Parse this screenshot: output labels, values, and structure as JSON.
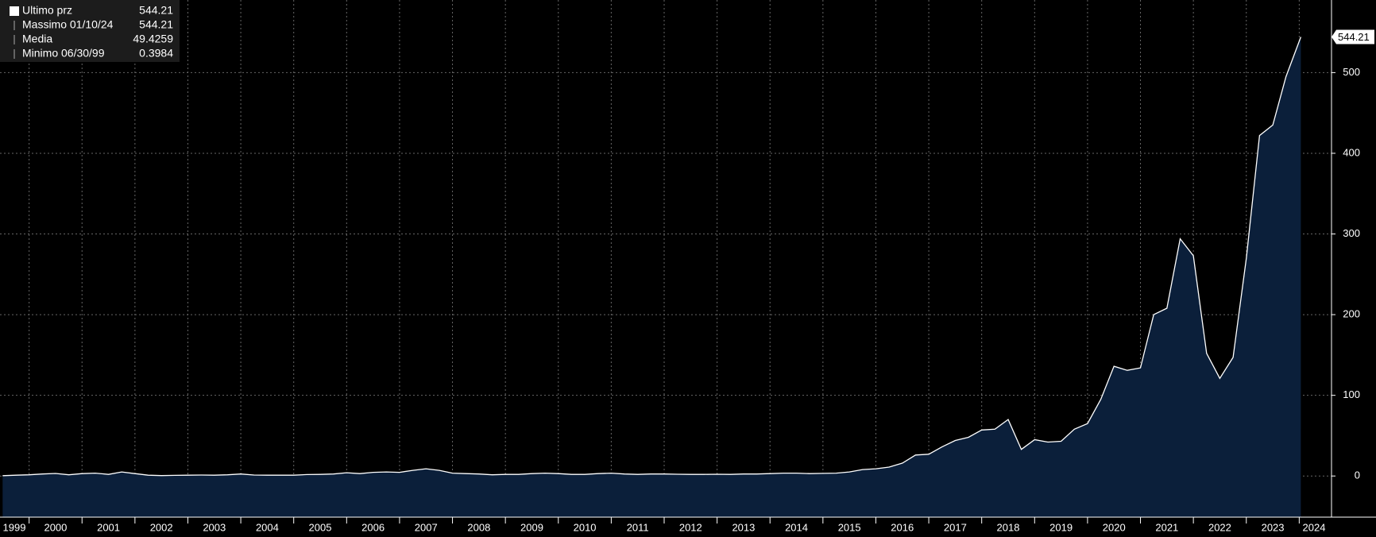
{
  "chart_data": {
    "type": "area",
    "legend": [
      {
        "label": "Ultimo prz",
        "value": 544.21
      },
      {
        "label": "Massimo 01/10/24",
        "value": 544.21
      },
      {
        "label": "Media",
        "value": 49.4259
      },
      {
        "label": "Minimo 06/30/99",
        "value": 0.3984
      }
    ],
    "x": [
      1999.5,
      1999.75,
      2000,
      2000.25,
      2000.5,
      2000.75,
      2001,
      2001.25,
      2001.5,
      2001.75,
      2002,
      2002.25,
      2002.5,
      2002.75,
      2003,
      2003.25,
      2003.5,
      2003.75,
      2004,
      2004.25,
      2004.5,
      2004.75,
      2005,
      2005.25,
      2005.5,
      2005.75,
      2006,
      2006.25,
      2006.5,
      2006.75,
      2007,
      2007.25,
      2007.5,
      2007.75,
      2008,
      2008.25,
      2008.5,
      2008.75,
      2009,
      2009.25,
      2009.5,
      2009.75,
      2010,
      2010.25,
      2010.5,
      2010.75,
      2011,
      2011.25,
      2011.5,
      2011.75,
      2012,
      2012.25,
      2012.5,
      2012.75,
      2013,
      2013.25,
      2013.5,
      2013.75,
      2014,
      2014.25,
      2014.5,
      2014.75,
      2015,
      2015.25,
      2015.5,
      2015.75,
      2016,
      2016.25,
      2016.5,
      2016.75,
      2017,
      2017.25,
      2017.5,
      2017.75,
      2018,
      2018.25,
      2018.5,
      2018.75,
      2019,
      2019.25,
      2019.5,
      2019.75,
      2020,
      2020.25,
      2020.5,
      2020.75,
      2021,
      2021.25,
      2021.5,
      2021.75,
      2022,
      2022.25,
      2022.5,
      2022.75,
      2023,
      2023.25,
      2023.5,
      2023.75,
      2024.03
    ],
    "series": [
      {
        "name": "Ultimo prz",
        "color": "#ffffff",
        "fill": "#0b1f3a",
        "values": [
          0.3984,
          1.0,
          1.5,
          2.5,
          3.2,
          1.5,
          3,
          3.5,
          2,
          5,
          3,
          1,
          0.5,
          0.8,
          1,
          1.2,
          1,
          1.5,
          2.5,
          1.2,
          1,
          1,
          1,
          1.8,
          2,
          2.5,
          4,
          3,
          4.5,
          5,
          4.5,
          7,
          9,
          7,
          3.5,
          3,
          2.5,
          1.5,
          2,
          2,
          3,
          3.5,
          3,
          2,
          2,
          3,
          3.5,
          2.5,
          2,
          2.5,
          2.5,
          2.2,
          2,
          2,
          2.2,
          2,
          2.5,
          2.5,
          3,
          3.5,
          3.5,
          3,
          3.3,
          3.5,
          5,
          8,
          9,
          11,
          16,
          26,
          27,
          36,
          44,
          48,
          57,
          58,
          70,
          33,
          45,
          42,
          43,
          58,
          65,
          95,
          136,
          131,
          134,
          200,
          208,
          294,
          273,
          152,
          121,
          147,
          270,
          422,
          435,
          495,
          544.21
        ]
      }
    ],
    "xlim": [
      1999.45,
      2024.61
    ],
    "xticks": [
      1999,
      2000,
      2001,
      2002,
      2003,
      2004,
      2005,
      2006,
      2007,
      2008,
      2009,
      2010,
      2011,
      2012,
      2013,
      2014,
      2015,
      2016,
      2017,
      2018,
      2019,
      2020,
      2021,
      2022,
      2023,
      2024
    ],
    "ylim": [
      -51,
      590
    ],
    "yticks": [
      0,
      100,
      200,
      300,
      400,
      500
    ],
    "grid": true
  }
}
